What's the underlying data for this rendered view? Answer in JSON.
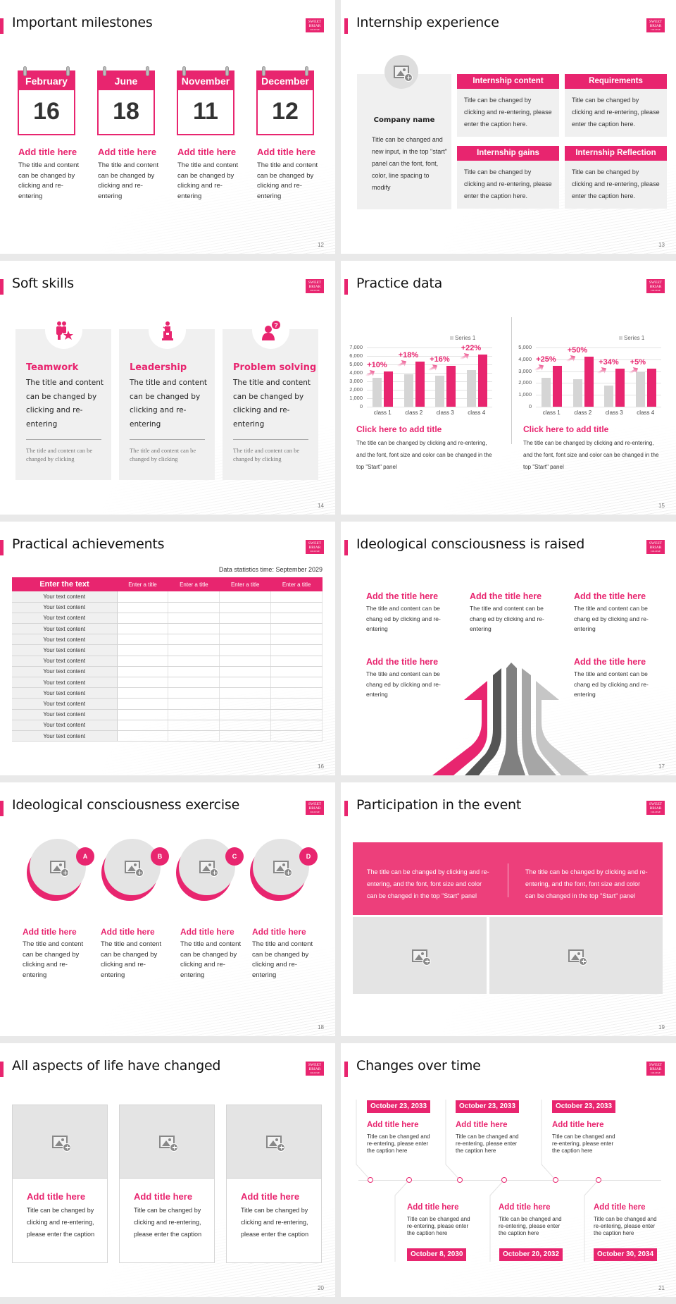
{
  "theme": {
    "accent": "#e8256f",
    "panel_gray": "#f0f0f0",
    "placeholder_gray": "#e4e4e4"
  },
  "logo": {
    "line1": "SWEET",
    "line2": "BRIAR",
    "line3": "COLLEGE"
  },
  "slides": [
    {
      "page": "12",
      "title": "Important milestones",
      "milestones": [
        {
          "month": "February",
          "day": "16",
          "title": "Add title here",
          "text": "The title and content can be changed by clicking and re-entering"
        },
        {
          "month": "June",
          "day": "18",
          "title": "Add title here",
          "text": "The title and content can be changed by clicking and re-entering"
        },
        {
          "month": "November",
          "day": "11",
          "title": "Add title here",
          "text": "The title and content can be changed by clicking and re-entering"
        },
        {
          "month": "December",
          "day": "12",
          "title": "Add title here",
          "text": "The title and content can be changed by clicking and re-entering"
        }
      ]
    },
    {
      "page": "13",
      "title": "Internship experience",
      "company": {
        "name": "Company name",
        "text": "Title can be changed and new input, in the top \"start\" panel can the font, font, color, line spacing to modify"
      },
      "boxes": [
        {
          "header": "Internship content",
          "text": "Title can be changed by clicking and re-entering, please enter the caption here."
        },
        {
          "header": "Requirements",
          "text": "Title can be changed by clicking and re-entering, please enter the caption here."
        },
        {
          "header": "Internship gains",
          "text": "Title can be changed by clicking and re-entering, please enter the caption here."
        },
        {
          "header": "Internship Reflection",
          "text": "Title can be changed by clicking and re-entering, please enter the caption here."
        }
      ]
    },
    {
      "page": "14",
      "title": "Soft skills",
      "cards": [
        {
          "icon": "teamwork-icon",
          "title": "Teamwork",
          "text": "The title and content can be changed by clicking and re-entering",
          "sub": "The title and content can be changed by clicking"
        },
        {
          "icon": "leadership-podium-icon",
          "title": "Leadership",
          "text": "The title and content can be changed by clicking and re-entering",
          "sub": "The title and content can be changed by clicking"
        },
        {
          "icon": "problem-solving-question-icon",
          "title": "Problem solving",
          "text": "The title and content can be changed by clicking and re-entering",
          "sub": "The title and content can be changed by clicking"
        }
      ]
    },
    {
      "page": "15",
      "title": "Practice data",
      "blocks": [
        {
          "title": "Click here to add title",
          "text": "The title can be changed by clicking and re-entering, and the font, font size and color can be changed in the top \"Start\" panel"
        },
        {
          "title": "Click here to add title",
          "text": "The title can be changed by clicking and re-entering, and the font, font size and color can be changed in the top \"Start\" panel"
        }
      ]
    },
    {
      "page": "16",
      "title": "Practical achievements",
      "stat_time": "Data statistics time: September 2029",
      "table": {
        "headers": [
          "Enter the text",
          "Enter a title",
          "Enter a title",
          "Enter a title",
          "Enter a title"
        ],
        "rows": [
          "Your text content",
          "Your text content",
          "Your text content",
          "Your text content",
          "Your text content",
          "Your text content",
          "Your text content",
          "Your text content",
          "Your text content",
          "Your text content",
          "Your text content",
          "Your text content",
          "Your text content",
          "Your text content"
        ]
      }
    },
    {
      "page": "17",
      "title": "Ideological consciousness is raised",
      "items": [
        {
          "title": "Add the title here",
          "text": "The title and content can be chang ed by clicking and re-entering"
        },
        {
          "title": "Add the title here",
          "text": "The title and content can be chang ed by clicking and re-entering"
        },
        {
          "title": "Add the title here",
          "text": "The title and content can be chang ed by clicking and re-entering"
        },
        {
          "title": "Add the title here",
          "text": "The title and content can be chang ed by clicking and re-entering"
        },
        {
          "title": "Add the title here",
          "text": "The title and content can be chang ed by clicking and re-entering"
        }
      ]
    },
    {
      "page": "18",
      "title": "Ideological consciousness exercise",
      "items": [
        {
          "badge": "A",
          "title": "Add title here",
          "text": "The title and content can be changed by clicking and re-entering"
        },
        {
          "badge": "B",
          "title": "Add title here",
          "text": "The title and content can be changed by clicking and re-entering"
        },
        {
          "badge": "C",
          "title": "Add title here",
          "text": "The title and content can be changed by clicking and re-entering"
        },
        {
          "badge": "D",
          "title": "Add title here",
          "text": "The title and content can be changed by clicking and re-entering"
        }
      ]
    },
    {
      "page": "19",
      "title": "Participation in the event",
      "texts": [
        "The title can be changed by clicking and re-entering, and the font, font size and color can be changed in the top \"Start\" panel",
        "The title can be changed by clicking and re-entering, and the font, font size and color can be changed in the top \"Start\" panel"
      ]
    },
    {
      "page": "20",
      "title": "All aspects of life have changed",
      "cards": [
        {
          "title": "Add title here",
          "text": "Title can be changed by clicking and re-entering, please enter the caption"
        },
        {
          "title": "Add title here",
          "text": "Title can be changed by clicking and re-entering, please enter the caption"
        },
        {
          "title": "Add title here",
          "text": "Title can be changed by clicking and re-entering, please enter the caption"
        }
      ]
    },
    {
      "page": "21",
      "title": "Changes over time",
      "top": [
        {
          "date": "October 23, 2033",
          "title": "Add title here",
          "text": "Title can be changed and re-entering, please enter the caption here"
        },
        {
          "date": "October 23, 2033",
          "title": "Add title here",
          "text": "Title can be changed and re-entering, please enter the caption here"
        },
        {
          "date": "October 23, 2033",
          "title": "Add title here",
          "text": "Title can be changed and re-entering, please enter the caption here"
        }
      ],
      "bottom": [
        {
          "date": "October 8, 2030",
          "title": "Add title here",
          "text": "Title can be changed and re-entering, please enter the caption here"
        },
        {
          "date": "October 20, 2032",
          "title": "Add title here",
          "text": "Title can be changed and re-entering, please enter the caption here"
        },
        {
          "date": "October 30, 2034",
          "title": "Add title here",
          "text": "Title can be changed and re-entering, please enter the caption here"
        }
      ]
    }
  ],
  "chart_data": [
    {
      "type": "bar",
      "title": "",
      "categories": [
        "class 1",
        "class 2",
        "class 3",
        "class 4"
      ],
      "series": [
        {
          "name": "Series 1",
          "color": "#d5d5d5",
          "values": [
            3450,
            3800,
            3700,
            4300
          ]
        },
        {
          "name": "",
          "color": "#e8256f",
          "values": [
            4200,
            5300,
            4800,
            6200
          ]
        }
      ],
      "annotations": [
        "+10%",
        "+18%",
        "+16%",
        "+22%"
      ],
      "yticks": [
        "0",
        "1,000",
        "2,000",
        "3,000",
        "4,000",
        "5,000",
        "6,000",
        "7,000"
      ],
      "ylim": [
        0,
        7000
      ],
      "legend": "Series 1",
      "legend_position": "top-right",
      "grid": true
    },
    {
      "type": "bar",
      "title": "",
      "categories": [
        "class 1",
        "class 2",
        "class 3",
        "class 4"
      ],
      "series": [
        {
          "name": "Series 1",
          "color": "#d5d5d5",
          "values": [
            2450,
            2300,
            1800,
            2900
          ]
        },
        {
          "name": "",
          "color": "#e8256f",
          "values": [
            3450,
            4200,
            3200,
            3200
          ]
        }
      ],
      "annotations": [
        "+25%",
        "+50%",
        "+34%",
        "+5%"
      ],
      "yticks": [
        "0",
        "1,000",
        "2,000",
        "3,000",
        "4,000",
        "5,000"
      ],
      "ylim": [
        0,
        5000
      ],
      "legend": "Series 1",
      "legend_position": "top-right",
      "grid": true
    }
  ]
}
